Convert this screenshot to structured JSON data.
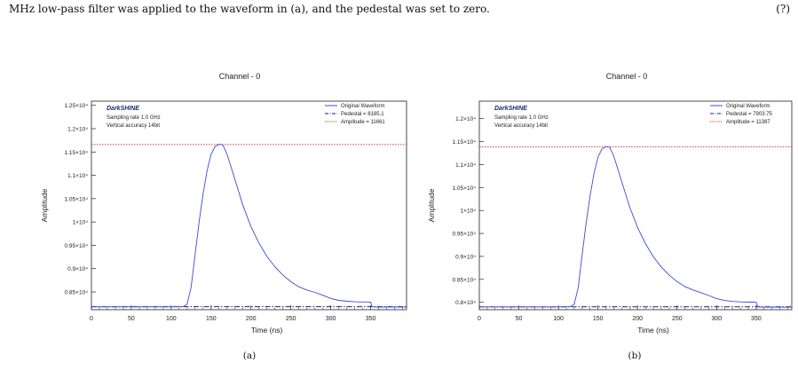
{
  "caption": {
    "text": "MHz low-pass filter was applied to the waveform in (a), and the pedestal was set to zero.",
    "tail": "(?)"
  },
  "chart_data": [
    {
      "type": "line",
      "panel_label": "(a)",
      "title": "Channel - 0",
      "xlabel": "Time (ns)",
      "ylabel": "Amplitude",
      "xlim": [
        0,
        395
      ],
      "ylim": [
        8120,
        12590
      ],
      "x_ticks": [
        0,
        50,
        100,
        150,
        200,
        250,
        300,
        350
      ],
      "x_tick_labels": [
        "0",
        "50",
        "100",
        "150",
        "200",
        "250",
        "300",
        "350"
      ],
      "y_ticks": [
        8500,
        9000,
        9500,
        10000,
        10500,
        11000,
        11500,
        12000,
        12500
      ],
      "y_tick_labels": [
        "0.85×10⁴",
        "0.9×10⁴",
        "0.95×10⁴",
        "1×10⁴",
        "1.05×10⁴",
        "1.1×10⁴",
        "1.15×10⁴",
        "1.2×10⁴",
        "1.25×10⁴"
      ],
      "annotation": {
        "brand": "DarkSHINE",
        "lines": [
          "Sampling rate 1.0 GHz",
          "Vertical accuracy 14bit"
        ]
      },
      "legend": {
        "position": "top-right",
        "entries": [
          "Original Waveform",
          "Pedestal = 8185.1",
          "Amplitude = 11661"
        ]
      },
      "pedestal": 8185.1,
      "amplitude": 11661,
      "series": [
        {
          "name": "Original Waveform",
          "x": [
            0,
            50,
            100,
            115,
            120,
            125,
            130,
            135,
            140,
            145,
            150,
            155,
            160,
            163,
            165,
            170,
            175,
            180,
            190,
            200,
            210,
            220,
            230,
            240,
            250,
            260,
            270,
            280,
            290,
            300,
            310,
            320,
            330,
            340,
            345,
            350,
            352,
            360,
            380,
            395
          ],
          "y": [
            8180,
            8180,
            8180,
            8185,
            8240,
            8600,
            9300,
            10000,
            10600,
            11100,
            11450,
            11620,
            11661,
            11661,
            11640,
            11450,
            11180,
            10900,
            10350,
            9900,
            9550,
            9260,
            9040,
            8860,
            8720,
            8610,
            8540,
            8490,
            8430,
            8360,
            8320,
            8300,
            8290,
            8285,
            8285,
            8280,
            8180,
            8175,
            8175,
            8175
          ]
        }
      ]
    },
    {
      "type": "line",
      "panel_label": "(b)",
      "title": "Channel - 0",
      "xlabel": "Time (ns)",
      "ylabel": "Amplitude",
      "xlim": [
        0,
        395
      ],
      "ylim": [
        7840,
        12380
      ],
      "x_ticks": [
        0,
        50,
        100,
        150,
        200,
        250,
        300,
        350
      ],
      "x_tick_labels": [
        "0",
        "50",
        "100",
        "150",
        "200",
        "250",
        "300",
        "350"
      ],
      "y_ticks": [
        8000,
        8500,
        9000,
        9500,
        10000,
        10500,
        11000,
        11500,
        12000
      ],
      "y_tick_labels": [
        "0.8×10⁴",
        "0.85×10⁴",
        "0.9×10⁴",
        "0.95×10⁴",
        "1×10⁴",
        "1.05×10⁴",
        "1.1×10⁴",
        "1.15×10⁴",
        "1.2×10⁴"
      ],
      "annotation": {
        "brand": "DarkSHINE",
        "lines": [
          "Sampling rate 1.0 GHz",
          "Vertical accuracy 14bit"
        ]
      },
      "legend": {
        "position": "top-right",
        "entries": [
          "Original Waveform",
          "Pedestal = 7903.75",
          "Amplitude = 11387"
        ]
      },
      "pedestal": 7903.75,
      "amplitude": 11387,
      "series": [
        {
          "name": "Original Waveform",
          "x": [
            0,
            50,
            100,
            115,
            120,
            125,
            130,
            135,
            140,
            145,
            150,
            155,
            160,
            163,
            165,
            170,
            175,
            180,
            190,
            200,
            210,
            220,
            230,
            240,
            250,
            260,
            270,
            280,
            290,
            300,
            310,
            320,
            330,
            340,
            345,
            350,
            352,
            360,
            380,
            395
          ],
          "y": [
            7900,
            7900,
            7900,
            7905,
            7960,
            8320,
            9030,
            9720,
            10320,
            10810,
            11160,
            11340,
            11387,
            11387,
            11370,
            11180,
            10910,
            10630,
            10080,
            9630,
            9280,
            8990,
            8770,
            8590,
            8450,
            8340,
            8270,
            8210,
            8150,
            8080,
            8040,
            8020,
            8010,
            8005,
            8005,
            8000,
            7900,
            7895,
            7895,
            7895
          ]
        }
      ]
    }
  ]
}
